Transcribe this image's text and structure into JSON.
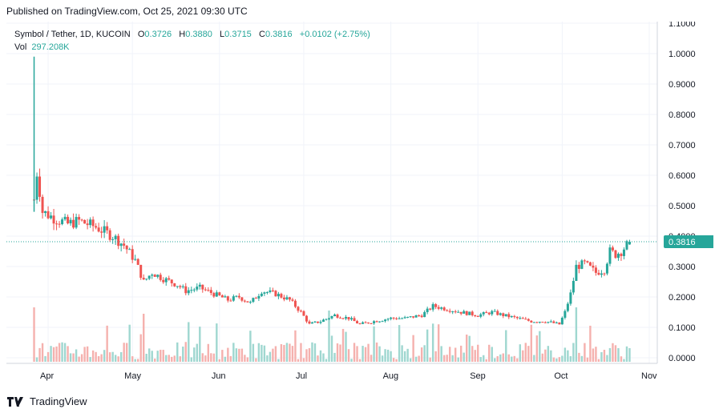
{
  "header": {
    "published": "Published on TradingView.com, Oct 25, 2021 09:30 UTC"
  },
  "legend": {
    "symbol": "Symbol / Tether, 1D, KUCOIN",
    "open_label": "O",
    "open": "0.3726",
    "high_label": "H",
    "high": "0.3880",
    "low_label": "L",
    "low": "0.3715",
    "close_label": "C",
    "close": "0.3816",
    "change": "+0.0102 (+2.75%)",
    "vol_label": "Vol",
    "vol": "297.208K"
  },
  "footer": {
    "brand": "TradingView"
  },
  "colors": {
    "up": "#26a69a",
    "down": "#ef5350",
    "up_vol": "#9fd7d0",
    "down_vol": "#f5b1ae",
    "grid": "#f0f3fa",
    "axis": "#131722",
    "last_price": "#26a69a"
  },
  "chart_data": {
    "type": "candlestick",
    "ylim": [
      0,
      1.1
    ],
    "y_ticks": [
      "0.0000",
      "0.1000",
      "0.2000",
      "0.3000",
      "0.4000",
      "0.5000",
      "0.6000",
      "0.7000",
      "0.8000",
      "0.9000",
      "1.0000",
      "1.1000"
    ],
    "x_ticks": [
      "Apr",
      "May",
      "Jun",
      "Jul",
      "Aug",
      "Sep",
      "Oct",
      "Nov"
    ],
    "last_price": "0.3816",
    "close_series": [
      [
        "2021-03-27",
        0.52
      ],
      [
        "2021-03-28",
        0.61
      ],
      [
        "2021-03-29",
        0.55
      ],
      [
        "2021-03-30",
        0.48
      ],
      [
        "2021-04-03",
        0.46
      ],
      [
        "2021-04-08",
        0.44
      ],
      [
        "2021-04-12",
        0.45
      ],
      [
        "2021-04-18",
        0.43
      ],
      [
        "2021-04-24",
        0.4
      ],
      [
        "2021-04-28",
        0.37
      ],
      [
        "2021-05-02",
        0.32
      ],
      [
        "2021-05-05",
        0.25
      ],
      [
        "2021-05-08",
        0.28
      ],
      [
        "2021-05-12",
        0.26
      ],
      [
        "2021-05-17",
        0.24
      ],
      [
        "2021-05-20",
        0.22
      ],
      [
        "2021-05-25",
        0.23
      ],
      [
        "2021-05-30",
        0.21
      ],
      [
        "2021-06-04",
        0.19
      ],
      [
        "2021-06-08",
        0.2
      ],
      [
        "2021-06-12",
        0.18
      ],
      [
        "2021-06-16",
        0.22
      ],
      [
        "2021-06-21",
        0.21
      ],
      [
        "2021-06-26",
        0.19
      ],
      [
        "2021-06-30",
        0.15
      ],
      [
        "2021-07-03",
        0.11
      ],
      [
        "2021-07-07",
        0.12
      ],
      [
        "2021-07-12",
        0.14
      ],
      [
        "2021-07-17",
        0.13
      ],
      [
        "2021-07-21",
        0.11
      ],
      [
        "2021-07-26",
        0.12
      ],
      [
        "2021-08-01",
        0.13
      ],
      [
        "2021-08-06",
        0.13
      ],
      [
        "2021-08-12",
        0.14
      ],
      [
        "2021-08-16",
        0.17
      ],
      [
        "2021-08-21",
        0.16
      ],
      [
        "2021-08-26",
        0.15
      ],
      [
        "2021-09-01",
        0.14
      ],
      [
        "2021-09-06",
        0.15
      ],
      [
        "2021-09-10",
        0.14
      ],
      [
        "2021-09-15",
        0.13
      ],
      [
        "2021-09-20",
        0.12
      ],
      [
        "2021-09-25",
        0.12
      ],
      [
        "2021-09-30",
        0.11
      ],
      [
        "2021-10-02",
        0.15
      ],
      [
        "2021-10-04",
        0.21
      ],
      [
        "2021-10-06",
        0.3
      ],
      [
        "2021-10-09",
        0.31
      ],
      [
        "2021-10-13",
        0.28
      ],
      [
        "2021-10-16",
        0.29
      ],
      [
        "2021-10-18",
        0.35
      ],
      [
        "2021-10-20",
        0.34
      ],
      [
        "2021-10-22",
        0.35
      ],
      [
        "2021-10-25",
        0.3816
      ]
    ],
    "volume_spikes": [
      [
        "2021-03-27",
        0.85
      ],
      [
        "2021-05-05",
        0.75
      ],
      [
        "2021-07-10",
        0.8
      ],
      [
        "2021-10-06",
        0.85
      ]
    ]
  }
}
